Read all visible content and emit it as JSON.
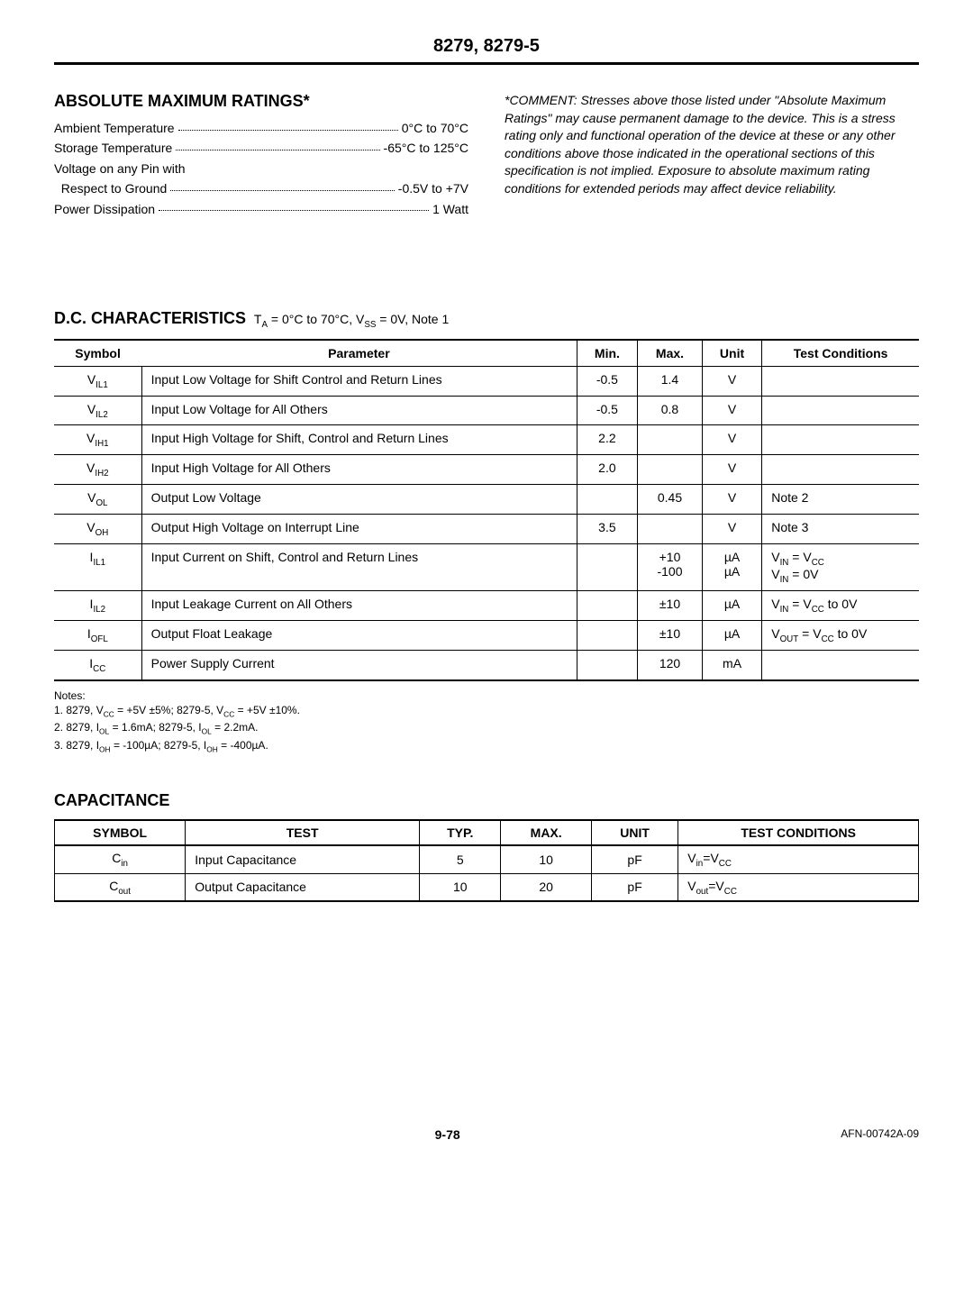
{
  "header": {
    "title": "8279, 8279-5"
  },
  "ratings": {
    "heading": "ABSOLUTE MAXIMUM RATINGS*",
    "rows": [
      {
        "label": "Ambient Temperature",
        "value": "0°C to 70°C"
      },
      {
        "label": "Storage Temperature",
        "value": "-65°C to 125°C"
      },
      {
        "label": "Voltage on any Pin with",
        "value": ""
      },
      {
        "label": "  Respect to Ground",
        "value": "-0.5V to +7V"
      },
      {
        "label": "Power Dissipation",
        "value": "1 Watt"
      }
    ]
  },
  "comment": "*COMMENT: Stresses above those listed under \"Absolute Maximum Ratings\" may cause permanent damage to the device. This is a stress rating only and functional operation of the device at these or any other conditions above those indicated in the operational sections of this specification is not implied. Exposure to absolute maximum rating conditions for extended periods may affect device reliability.",
  "dc": {
    "heading": "D.C. CHARACTERISTICS",
    "cond": "T_A = 0°C to 70°C, V_SS = 0V, Note 1",
    "columns": [
      "Symbol",
      "Parameter",
      "Min.",
      "Max.",
      "Unit",
      "Test Conditions"
    ],
    "rows": [
      {
        "sym": "V_IL1",
        "param": "Input Low Voltage for Shift Control and Return Lines",
        "min": "-0.5",
        "max": "1.4",
        "unit": "V",
        "tc": ""
      },
      {
        "sym": "V_IL2",
        "param": "Input Low Voltage for All Others",
        "min": "-0.5",
        "max": "0.8",
        "unit": "V",
        "tc": ""
      },
      {
        "sym": "V_IH1",
        "param": "Input High Voltage for Shift, Control and Return Lines",
        "min": "2.2",
        "max": "",
        "unit": "V",
        "tc": ""
      },
      {
        "sym": "V_IH2",
        "param": "Input High Voltage for All Others",
        "min": "2.0",
        "max": "",
        "unit": "V",
        "tc": ""
      },
      {
        "sym": "V_OL",
        "param": "Output Low Voltage",
        "min": "",
        "max": "0.45",
        "unit": "V",
        "tc": "Note 2"
      },
      {
        "sym": "V_OH",
        "param": "Output High Voltage on Interrupt Line",
        "min": "3.5",
        "max": "",
        "unit": "V",
        "tc": "Note 3"
      },
      {
        "sym": "I_IL1",
        "param": "Input Current on Shift, Control and Return Lines",
        "min": "",
        "max": "+10\n-100",
        "unit": "µA\nµA",
        "tc": "V_IN = V_CC\nV_IN = 0V"
      },
      {
        "sym": "I_IL2",
        "param": "Input Leakage Current on All Others",
        "min": "",
        "max": "±10",
        "unit": "µA",
        "tc": "V_IN = V_CC to 0V"
      },
      {
        "sym": "I_OFL",
        "param": "Output Float Leakage",
        "min": "",
        "max": "±10",
        "unit": "µA",
        "tc": "V_OUT = V_CC to 0V"
      },
      {
        "sym": "I_CC",
        "param": "Power Supply Current",
        "min": "",
        "max": "120",
        "unit": "mA",
        "tc": ""
      }
    ]
  },
  "notes": {
    "heading": "Notes:",
    "lines": [
      "1. 8279, V_CC = +5V ±5%; 8279-5, V_CC = +5V ±10%.",
      "2. 8279, I_OL = 1.6mA; 8279-5, I_OL = 2.2mA.",
      "3. 8279, I_OH = -100µA; 8279-5, I_OH = -400µA."
    ]
  },
  "cap": {
    "heading": "CAPACITANCE",
    "columns": [
      "SYMBOL",
      "TEST",
      "TYP.",
      "MAX.",
      "UNIT",
      "TEST CONDITIONS"
    ],
    "rows": [
      {
        "sym": "C_in",
        "test": "Input Capacitance",
        "typ": "5",
        "max": "10",
        "unit": "pF",
        "tc": "V_in=V_CC"
      },
      {
        "sym": "C_out",
        "test": "Output Capacitance",
        "typ": "10",
        "max": "20",
        "unit": "pF",
        "tc": "V_out=V_CC"
      }
    ]
  },
  "footer": {
    "page": "9-78",
    "ref": "AFN-00742A-09"
  }
}
